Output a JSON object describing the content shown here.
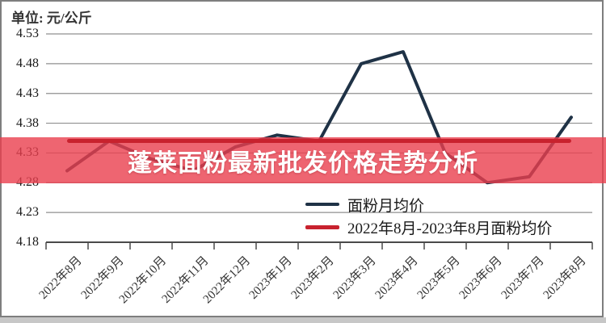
{
  "unit_label": "单位: 元/公斤",
  "banner": {
    "title": "蓬莱面粉最新批发价格走势分析",
    "bg": "#EA3E4DCC",
    "text_color": "#FFFFFF"
  },
  "legend": {
    "items": [
      {
        "label": "面粉月均价",
        "color": "#1F3246"
      },
      {
        "label": "2022年8月-2023年8月面粉均价",
        "color": "#C8222E"
      }
    ]
  },
  "chart_data": {
    "type": "line",
    "title": "蓬莱面粉最新批发价格走势分析",
    "ylabel": "元/公斤",
    "xlabel": "",
    "categories": [
      "2022年8月",
      "2022年9月",
      "2022年10月",
      "2022年11月",
      "2022年12月",
      "2023年1月",
      "2023年2月",
      "2023年3月",
      "2023年4月",
      "2023年5月",
      "2023年6月",
      "2023年7月",
      "2023年8月"
    ],
    "series": [
      {
        "name": "面粉月均价",
        "type": "line",
        "color": "#1F3246",
        "values": [
          4.3,
          4.35,
          4.32,
          4.3,
          4.34,
          4.36,
          4.35,
          4.48,
          4.5,
          4.33,
          4.28,
          4.29,
          4.39
        ]
      },
      {
        "name": "2022年8月-2023年8月面粉均价",
        "type": "constant",
        "color": "#C8222E",
        "value": 4.35
      }
    ],
    "y_ticks": [
      4.53,
      4.48,
      4.43,
      4.38,
      4.33,
      4.28,
      4.23,
      4.18
    ],
    "ylim": [
      4.18,
      4.53
    ],
    "grid": true,
    "legend_position": "inside-bottom-right",
    "grid_color": "#8F8F8F",
    "axis_color": "#4A4A4A"
  }
}
